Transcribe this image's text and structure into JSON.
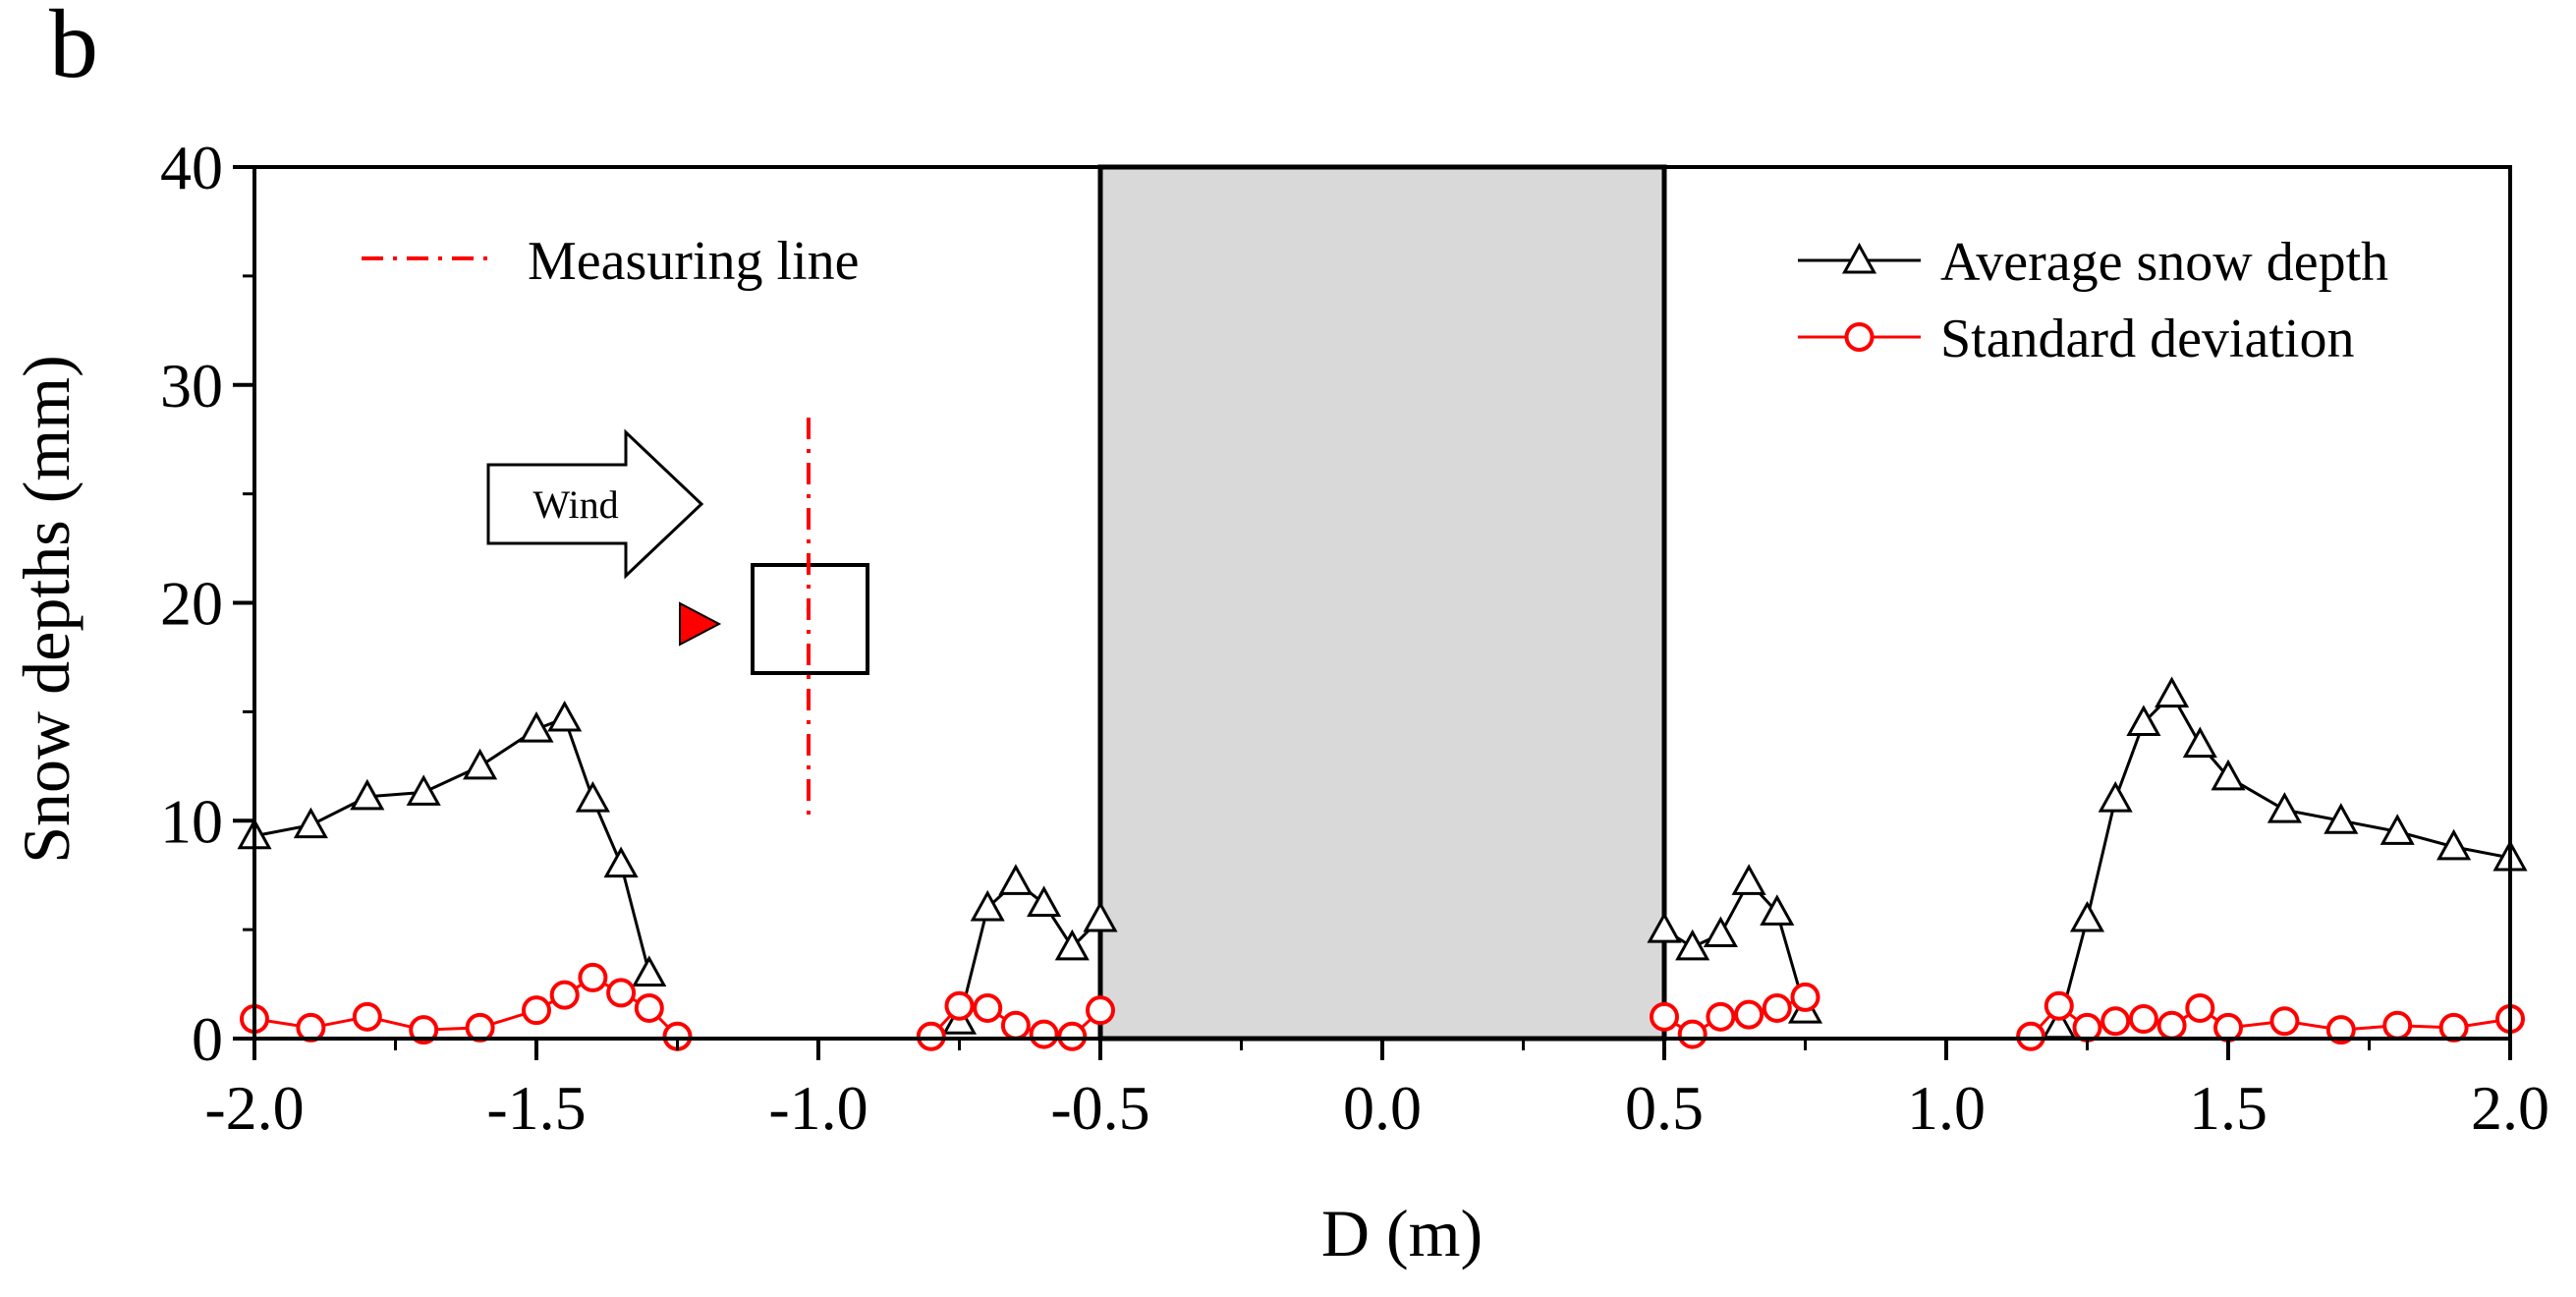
{
  "panel_label": "b",
  "chart_data": {
    "type": "line",
    "xlabel": "D (m)",
    "ylabel": "Snow depths (mm)",
    "xlim": [
      -2.0,
      2.0
    ],
    "ylim": [
      0,
      40
    ],
    "x_ticks": [
      -2.0,
      -1.5,
      -1.0,
      -0.5,
      0.0,
      0.5,
      1.0,
      1.5,
      2.0
    ],
    "x_tick_labels": [
      "-2.0",
      "-1.5",
      "-1.0",
      "-0.5",
      "0.0",
      "0.5",
      "1.0",
      "1.5",
      "2.0"
    ],
    "y_ticks": [
      0,
      10,
      20,
      30,
      40
    ],
    "y_tick_labels": [
      "0",
      "10",
      "20",
      "30",
      "40"
    ],
    "shaded_region": {
      "x_range": [
        -0.5,
        0.5
      ],
      "color": "#d9d9d9"
    },
    "legend_position": "top-right",
    "series": [
      {
        "name": "Average snow depth",
        "color": "#000000",
        "marker": "triangle",
        "segments": [
          {
            "x": [
              -2.0,
              -1.9,
              -1.8,
              -1.7,
              -1.6,
              -1.5,
              -1.45,
              -1.4,
              -1.35,
              -1.3
            ],
            "y": [
              9.3,
              9.8,
              11.1,
              11.3,
              12.5,
              14.2,
              14.7,
              11.0,
              8.0,
              3.0
            ]
          },
          {
            "x": [
              -0.75,
              -0.7,
              -0.65,
              -0.6,
              -0.55,
              -0.5
            ],
            "y": [
              0.8,
              6.0,
              7.2,
              6.2,
              4.2,
              5.5
            ]
          },
          {
            "x": [
              0.5,
              0.55,
              0.6,
              0.65,
              0.7,
              0.75
            ],
            "y": [
              5.0,
              4.2,
              4.8,
              7.2,
              5.8,
              1.3
            ]
          },
          {
            "x": [
              1.2,
              1.25,
              1.3,
              1.35,
              1.4,
              1.45,
              1.5,
              1.6,
              1.7,
              1.8,
              1.9,
              2.0
            ],
            "y": [
              0.6,
              5.5,
              11.0,
              14.5,
              15.8,
              13.5,
              12.0,
              10.5,
              10.0,
              9.5,
              8.8,
              8.3
            ]
          }
        ]
      },
      {
        "name": "Standard deviation",
        "color": "#ff0000",
        "marker": "circle",
        "segments": [
          {
            "x": [
              -2.0,
              -1.9,
              -1.8,
              -1.7,
              -1.6,
              -1.5,
              -1.45,
              -1.4,
              -1.35,
              -1.3,
              -1.25
            ],
            "y": [
              0.9,
              0.5,
              1.0,
              0.4,
              0.5,
              1.3,
              2.0,
              2.8,
              2.1,
              1.4,
              0.1
            ]
          },
          {
            "x": [
              -0.8,
              -0.75,
              -0.7,
              -0.65,
              -0.6,
              -0.55,
              -0.5
            ],
            "y": [
              0.1,
              1.5,
              1.4,
              0.6,
              0.2,
              0.1,
              1.3
            ]
          },
          {
            "x": [
              0.5,
              0.55,
              0.6,
              0.65,
              0.7,
              0.75
            ],
            "y": [
              1.0,
              0.2,
              1.0,
              1.1,
              1.4,
              1.9
            ]
          },
          {
            "x": [
              1.15,
              1.2,
              1.25,
              1.3,
              1.35,
              1.4,
              1.45,
              1.5,
              1.6,
              1.7,
              1.8,
              1.9,
              2.0
            ],
            "y": [
              0.1,
              1.5,
              0.5,
              0.8,
              0.9,
              0.6,
              1.4,
              0.5,
              0.8,
              0.4,
              0.6,
              0.5,
              0.9
            ]
          }
        ]
      }
    ],
    "annotations": {
      "measuring_line_label": "Measuring line",
      "wind_label": "Wind"
    }
  }
}
